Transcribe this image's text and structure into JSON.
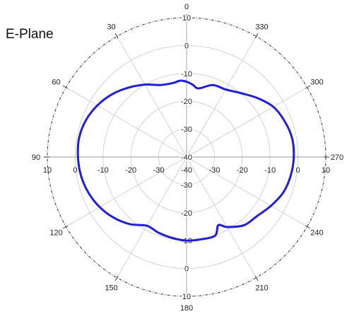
{
  "chart_data": {
    "type": "polar-line",
    "title": "E-Plane",
    "angle_labels": [
      "0",
      "30",
      "60",
      "90",
      "120",
      "150",
      "180",
      "210",
      "240",
      "270",
      "300",
      "330"
    ],
    "angle_direction": "counterclockwise",
    "zero_location": "top",
    "radial_range": [
      -40,
      10
    ],
    "radial_ticks_vertical": [
      "10",
      "0",
      "-10",
      "-20",
      "-30",
      "-40",
      "-30",
      "-20",
      "-10",
      "0",
      "10"
    ],
    "radial_ticks_horizontal": [
      "10",
      "0",
      "-10",
      "-20",
      "-30",
      "-40",
      "-30",
      "-20",
      "-10",
      "0",
      "10"
    ],
    "grid": true,
    "series": [
      {
        "color": "#1f1fd6",
        "points": [
          {
            "angle": 0,
            "r": -13
          },
          {
            "angle": 5,
            "r": -12.5
          },
          {
            "angle": 10,
            "r": -13
          },
          {
            "angle": 20,
            "r": -12.5
          },
          {
            "angle": 30,
            "r": -10
          },
          {
            "angle": 40,
            "r": -7.5
          },
          {
            "angle": 50,
            "r": -5
          },
          {
            "angle": 60,
            "r": -3
          },
          {
            "angle": 70,
            "r": -1.5
          },
          {
            "angle": 80,
            "r": -0.8
          },
          {
            "angle": 90,
            "r": -1
          },
          {
            "angle": 100,
            "r": -1.5
          },
          {
            "angle": 110,
            "r": -2.5
          },
          {
            "angle": 120,
            "r": -4
          },
          {
            "angle": 130,
            "r": -6
          },
          {
            "angle": 140,
            "r": -8.5
          },
          {
            "angle": 150,
            "r": -11.5
          },
          {
            "angle": 160,
            "r": -11
          },
          {
            "angle": 170,
            "r": -10.5
          },
          {
            "angle": 180,
            "r": -10
          },
          {
            "angle": 190,
            "r": -10
          },
          {
            "angle": 200,
            "r": -10
          },
          {
            "angle": 205,
            "r": -13
          },
          {
            "angle": 210,
            "r": -11
          },
          {
            "angle": 220,
            "r": -8
          },
          {
            "angle": 230,
            "r": -7
          },
          {
            "angle": 240,
            "r": -5
          },
          {
            "angle": 250,
            "r": -3
          },
          {
            "angle": 260,
            "r": -2
          },
          {
            "angle": 270,
            "r": -1.5
          },
          {
            "angle": 280,
            "r": -1.5
          },
          {
            "angle": 290,
            "r": -2.5
          },
          {
            "angle": 300,
            "r": -4
          },
          {
            "angle": 310,
            "r": -7
          },
          {
            "angle": 320,
            "r": -10
          },
          {
            "angle": 330,
            "r": -12
          },
          {
            "angle": 340,
            "r": -12.5
          },
          {
            "angle": 350,
            "r": -15
          },
          {
            "angle": 355,
            "r": -14
          },
          {
            "angle": 360,
            "r": -13
          }
        ]
      }
    ]
  }
}
